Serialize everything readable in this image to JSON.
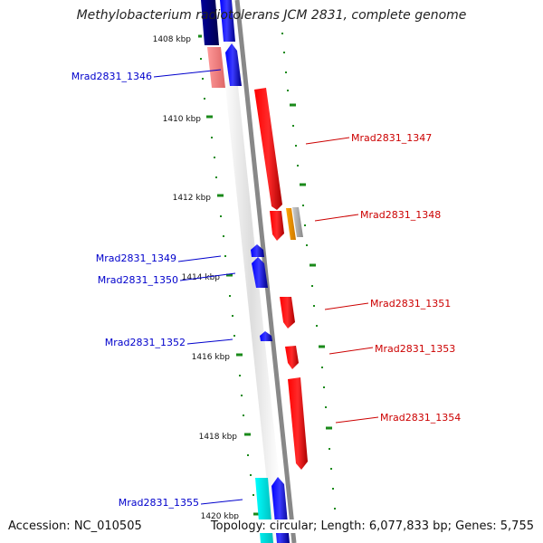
{
  "title": "Methylobacterium radiotolerans JCM 2831, complete genome",
  "footer": {
    "accession": "Accession: NC_010505",
    "summary": "Topology: circular; Length: 6,077,833 bp; Genes: 5,755"
  },
  "chart_data": {
    "type": "genome-map",
    "ticks": [
      "1408 kbp",
      "1410 kbp",
      "1412 kbp",
      "1414 kbp",
      "1416 kbp",
      "1418 kbp",
      "1420 kbp"
    ],
    "genes": [
      {
        "label": "Mrad2831_1346",
        "strand": "-",
        "color": "#0000cc"
      },
      {
        "label": "Mrad2831_1347",
        "strand": "+",
        "color": "#cc0000"
      },
      {
        "label": "Mrad2831_1348",
        "strand": "+",
        "color": "#cc0000"
      },
      {
        "label": "Mrad2831_1349",
        "strand": "-",
        "color": "#0000cc"
      },
      {
        "label": "Mrad2831_1350",
        "strand": "-",
        "color": "#0000cc"
      },
      {
        "label": "Mrad2831_1351",
        "strand": "+",
        "color": "#cc0000"
      },
      {
        "label": "Mrad2831_1352",
        "strand": "-",
        "color": "#0000cc"
      },
      {
        "label": "Mrad2831_1353",
        "strand": "+",
        "color": "#cc0000"
      },
      {
        "label": "Mrad2831_1354",
        "strand": "+",
        "color": "#cc0000"
      },
      {
        "label": "Mrad2831_1355",
        "strand": "-",
        "color": "#0000cc"
      }
    ]
  }
}
